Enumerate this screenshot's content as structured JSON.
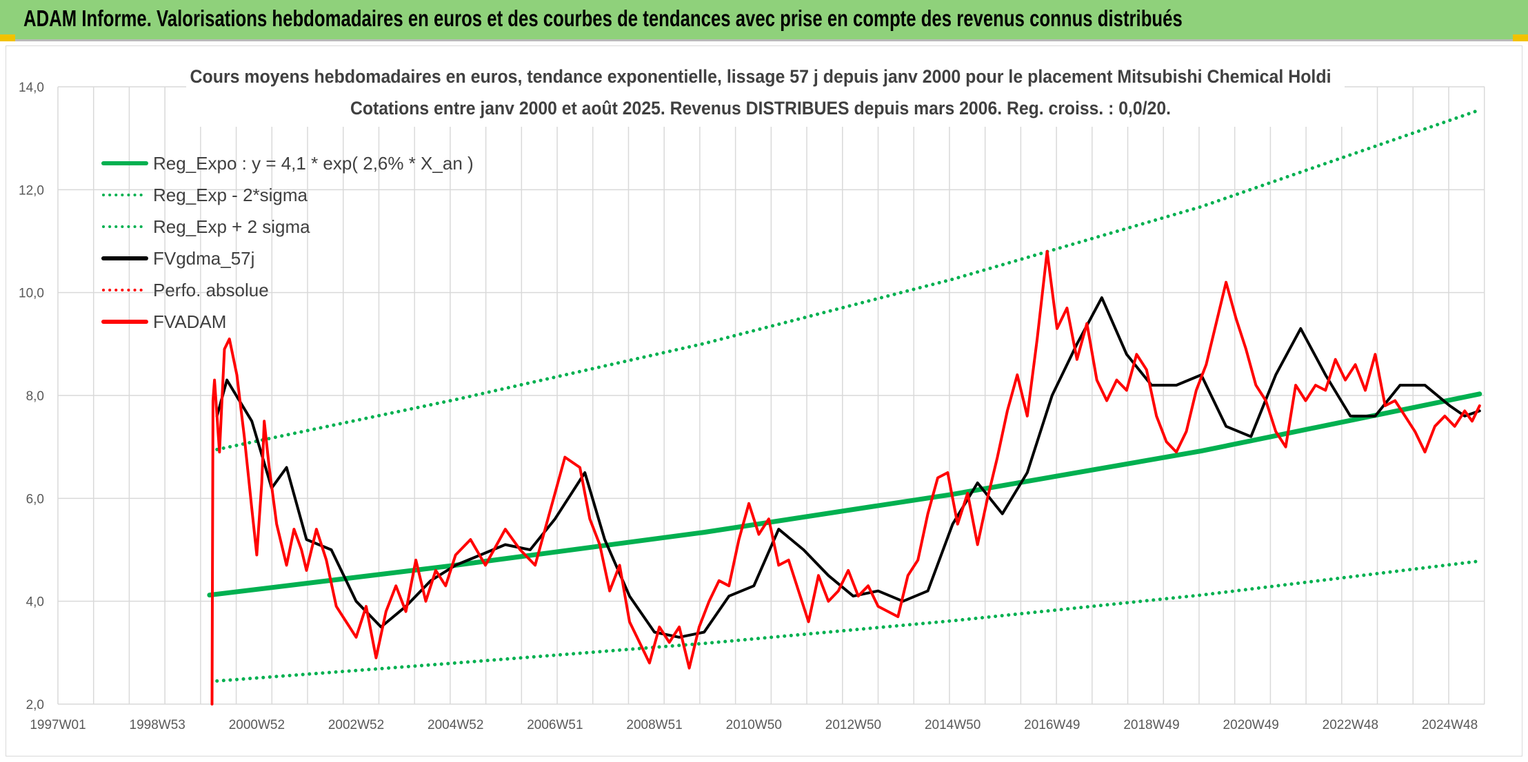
{
  "header": {
    "title": "ADAM Informe. Valorisations hebdomadaires en euros et des courbes de tendances avec prise en compte des revenus connus distribués"
  },
  "chart_data": {
    "type": "line",
    "title": "Cours moyens hebdomadaires en euros, tendance exponentielle, lissage 57 j depuis janv 2000 pour le placement Mitsubishi Chemical Holdi",
    "subtitle": "Cotations entre janv 2000 et août 2025. Revenus DISTRIBUES depuis mars 2006. Reg. croiss. : 0,0/20.",
    "xlabel": "",
    "ylabel": "",
    "ylim": [
      2,
      14
    ],
    "xlim": [
      1997.0,
      2025.7
    ],
    "y_ticks": [
      "2,0",
      "4,0",
      "6,0",
      "8,0",
      "10,0",
      "12,0",
      "14,0"
    ],
    "x_ticks": [
      {
        "label": "1997W01",
        "x": 1997.0
      },
      {
        "label": "1998W53",
        "x": 1999.0
      },
      {
        "label": "2000W52",
        "x": 2001.0
      },
      {
        "label": "2002W52",
        "x": 2003.0
      },
      {
        "label": "2004W52",
        "x": 2005.0
      },
      {
        "label": "2006W51",
        "x": 2007.0
      },
      {
        "label": "2008W51",
        "x": 2009.0
      },
      {
        "label": "2010W50",
        "x": 2011.0
      },
      {
        "label": "2012W50",
        "x": 2013.0
      },
      {
        "label": "2014W50",
        "x": 2015.0
      },
      {
        "label": "2016W49",
        "x": 2017.0
      },
      {
        "label": "2018W49",
        "x": 2019.0
      },
      {
        "label": "2020W49",
        "x": 2021.0
      },
      {
        "label": "2022W48",
        "x": 2023.0
      },
      {
        "label": "2024W48",
        "x": 2025.0
      }
    ],
    "grid": true,
    "legend_position": "top-left",
    "series": [
      {
        "name": "Reg_Expo : y = 4,1 * exp( 2,6% *  X_an )",
        "color": "#00b050",
        "style": "solid",
        "width": 7,
        "x": [
          2000.05,
          2005.0,
          2010.0,
          2015.0,
          2020.0,
          2025.6
        ],
        "y": [
          4.12,
          4.7,
          5.34,
          6.08,
          6.92,
          8.03
        ]
      },
      {
        "name": "Reg_Exp - 2*sigma",
        "color": "#00b050",
        "style": "dotted",
        "width": 5,
        "x": [
          2000.2,
          2005.0,
          2010.0,
          2015.0,
          2020.0,
          2025.6
        ],
        "y": [
          2.45,
          2.8,
          3.18,
          3.62,
          4.12,
          4.78
        ]
      },
      {
        "name": "Reg_Exp + 2 sigma",
        "color": "#00b050",
        "style": "dotted",
        "width": 5,
        "x": [
          2000.2,
          2005.0,
          2010.0,
          2015.0,
          2020.0,
          2025.6
        ],
        "y": [
          6.95,
          7.92,
          9.01,
          10.26,
          11.67,
          13.55
        ]
      },
      {
        "name": "FVgdma_57j",
        "color": "#000000",
        "style": "solid",
        "width": 4,
        "x": [
          2000.2,
          2000.4,
          2000.9,
          2001.3,
          2001.6,
          2002.0,
          2002.5,
          2003.0,
          2003.5,
          2004.0,
          2004.5,
          2005.0,
          2005.5,
          2006.0,
          2006.5,
          2007.0,
          2007.6,
          2008.0,
          2008.5,
          2009.0,
          2009.5,
          2010.0,
          2010.5,
          2011.0,
          2011.5,
          2012.0,
          2012.5,
          2013.0,
          2013.5,
          2014.0,
          2014.5,
          2015.0,
          2015.5,
          2016.0,
          2016.5,
          2017.0,
          2017.5,
          2018.0,
          2018.5,
          2019.0,
          2019.5,
          2020.0,
          2020.5,
          2021.0,
          2021.5,
          2022.0,
          2022.5,
          2023.0,
          2023.5,
          2024.0,
          2024.5,
          2025.0,
          2025.3,
          2025.6
        ],
        "y": [
          7.6,
          8.3,
          7.5,
          6.2,
          6.6,
          5.2,
          5.0,
          4.0,
          3.5,
          3.9,
          4.4,
          4.7,
          4.9,
          5.1,
          5.0,
          5.6,
          6.5,
          5.2,
          4.1,
          3.4,
          3.3,
          3.4,
          4.1,
          4.3,
          5.4,
          5.0,
          4.5,
          4.1,
          4.2,
          4.0,
          4.2,
          5.5,
          6.3,
          5.7,
          6.5,
          8.0,
          9.0,
          9.9,
          8.8,
          8.2,
          8.2,
          8.4,
          7.4,
          7.2,
          8.4,
          9.3,
          8.4,
          7.6,
          7.6,
          8.2,
          8.2,
          7.8,
          7.6,
          7.7
        ]
      },
      {
        "name": "Perfo. absolue",
        "color": "#ff0000",
        "style": "dotted",
        "width": 4,
        "x": [],
        "y": []
      },
      {
        "name": "FVADAM",
        "color": "#ff0000",
        "style": "solid",
        "width": 4,
        "x": [
          2000.1,
          2000.12,
          2000.15,
          2000.25,
          2000.35,
          2000.45,
          2000.6,
          2000.75,
          2000.9,
          2001.0,
          2001.1,
          2001.15,
          2001.25,
          2001.4,
          2001.6,
          2001.75,
          2001.9,
          2002.0,
          2002.2,
          2002.4,
          2002.6,
          2002.8,
          2003.0,
          2003.2,
          2003.4,
          2003.6,
          2003.8,
          2004.0,
          2004.2,
          2004.4,
          2004.6,
          2004.8,
          2005.0,
          2005.3,
          2005.6,
          2006.0,
          2006.3,
          2006.6,
          2006.8,
          2007.0,
          2007.2,
          2007.5,
          2007.7,
          2007.9,
          2008.1,
          2008.3,
          2008.5,
          2008.7,
          2008.9,
          2009.1,
          2009.3,
          2009.5,
          2009.7,
          2009.9,
          2010.1,
          2010.3,
          2010.5,
          2010.7,
          2010.9,
          2011.1,
          2011.3,
          2011.5,
          2011.7,
          2011.9,
          2012.1,
          2012.3,
          2012.5,
          2012.7,
          2012.9,
          2013.1,
          2013.3,
          2013.5,
          2013.7,
          2013.9,
          2014.1,
          2014.3,
          2014.5,
          2014.7,
          2014.9,
          2015.1,
          2015.3,
          2015.5,
          2015.7,
          2015.9,
          2016.1,
          2016.3,
          2016.5,
          2016.7,
          2016.9,
          2017.1,
          2017.3,
          2017.5,
          2017.7,
          2017.9,
          2018.1,
          2018.3,
          2018.5,
          2018.7,
          2018.9,
          2019.1,
          2019.3,
          2019.5,
          2019.7,
          2019.9,
          2020.1,
          2020.3,
          2020.5,
          2020.7,
          2020.9,
          2021.1,
          2021.3,
          2021.5,
          2021.7,
          2021.9,
          2022.1,
          2022.3,
          2022.5,
          2022.7,
          2022.9,
          2023.1,
          2023.3,
          2023.5,
          2023.7,
          2023.9,
          2024.1,
          2024.3,
          2024.5,
          2024.7,
          2024.9,
          2025.1,
          2025.3,
          2025.45,
          2025.6
        ],
        "y": [
          2.0,
          7.9,
          8.3,
          6.9,
          8.9,
          9.1,
          8.4,
          7.2,
          5.8,
          4.9,
          6.3,
          7.5,
          6.6,
          5.5,
          4.7,
          5.4,
          5.0,
          4.6,
          5.4,
          4.8,
          3.9,
          3.6,
          3.3,
          3.9,
          2.9,
          3.8,
          4.3,
          3.8,
          4.8,
          4.0,
          4.6,
          4.3,
          4.9,
          5.2,
          4.7,
          5.4,
          5.0,
          4.7,
          5.4,
          6.1,
          6.8,
          6.6,
          5.6,
          5.1,
          4.2,
          4.7,
          3.6,
          3.2,
          2.8,
          3.5,
          3.2,
          3.5,
          2.7,
          3.5,
          4.0,
          4.4,
          4.3,
          5.2,
          5.9,
          5.3,
          5.6,
          4.7,
          4.8,
          4.2,
          3.6,
          4.5,
          4.0,
          4.2,
          4.6,
          4.1,
          4.3,
          3.9,
          3.8,
          3.7,
          4.5,
          4.8,
          5.7,
          6.4,
          6.5,
          5.5,
          6.1,
          5.1,
          6.0,
          6.8,
          7.7,
          8.4,
          7.6,
          9.1,
          10.8,
          9.3,
          9.7,
          8.7,
          9.4,
          8.3,
          7.9,
          8.3,
          8.1,
          8.8,
          8.5,
          7.6,
          7.1,
          6.9,
          7.3,
          8.1,
          8.6,
          9.4,
          10.2,
          9.5,
          8.9,
          8.2,
          7.9,
          7.3,
          7.0,
          8.2,
          7.9,
          8.2,
          8.1,
          8.7,
          8.3,
          8.6,
          8.1,
          8.8,
          7.8,
          7.9,
          7.6,
          7.3,
          6.9,
          7.4,
          7.6,
          7.4,
          7.7,
          7.5,
          7.8
        ]
      }
    ]
  }
}
